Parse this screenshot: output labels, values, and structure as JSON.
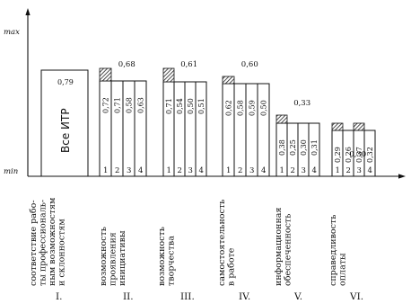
{
  "chart_data": {
    "type": "bar",
    "title": "",
    "ylabel_max": "max",
    "ylabel_min": "min",
    "first_bar": {
      "value": 0.79,
      "label": "Все ИТР"
    },
    "groups": [
      {
        "roman": "I.",
        "label_lines": [
          "соответствие рабо-",
          "ты профессиональ-",
          "ным возможностям",
          "и склонностям"
        ],
        "value_label": "",
        "bars": []
      },
      {
        "roman": "II.",
        "label_lines": [
          "возможность",
          "проявления",
          "инициативы"
        ],
        "value_label": "0,68",
        "bars": [
          {
            "n": "1",
            "value_label": "0,72",
            "value": 0.72
          },
          {
            "n": "2",
            "value_label": "0,71",
            "value": 0.71
          },
          {
            "n": "3",
            "value_label": "0,58",
            "value": 0.58
          },
          {
            "n": "4",
            "value_label": "0,63",
            "value": 0.63
          }
        ]
      },
      {
        "roman": "III.",
        "label_lines": [
          "возможность",
          "творчества"
        ],
        "value_label": "0,61",
        "bars": [
          {
            "n": "1",
            "value_label": "0,71",
            "value": 0.71
          },
          {
            "n": "2",
            "value_label": "0,54",
            "value": 0.54
          },
          {
            "n": "3",
            "value_label": "0,50",
            "value": 0.5
          },
          {
            "n": "4",
            "value_label": "0,51",
            "value": 0.51
          }
        ]
      },
      {
        "roman": "IV.",
        "label_lines": [
          "самостоятельность",
          "в работе"
        ],
        "value_label": "0,60",
        "bars": [
          {
            "n": "1",
            "value_label": "0,62",
            "value": 0.62
          },
          {
            "n": "2",
            "value_label": "0,58",
            "value": 0.58
          },
          {
            "n": "3",
            "value_label": "0,59",
            "value": 0.59
          },
          {
            "n": "4",
            "value_label": "0,50",
            "value": 0.5
          }
        ]
      },
      {
        "roman": "V.",
        "label_lines": [
          "информационная",
          "обеспеченность"
        ],
        "value_label": "0,33",
        "bars": [
          {
            "n": "1",
            "value_label": "0,38",
            "value": 0.38
          },
          {
            "n": "2",
            "value_label": "0,25",
            "value": 0.25
          },
          {
            "n": "3",
            "value_label": "0,30",
            "value": 0.3
          },
          {
            "n": "4",
            "value_label": "0,31",
            "value": 0.31
          }
        ]
      },
      {
        "roman": "VI.",
        "label_lines": [
          "справедливость",
          "оплаты"
        ],
        "value_label": "0,30",
        "bars": [
          {
            "n": "1",
            "value_label": "0,29",
            "value": 0.29
          },
          {
            "n": "2",
            "value_label": "0,26",
            "value": 0.26
          },
          {
            "n": "3",
            "value_label": "0,37",
            "value": 0.37
          },
          {
            "n": "4",
            "value_label": "0,32",
            "value": 0.32
          }
        ]
      }
    ]
  }
}
